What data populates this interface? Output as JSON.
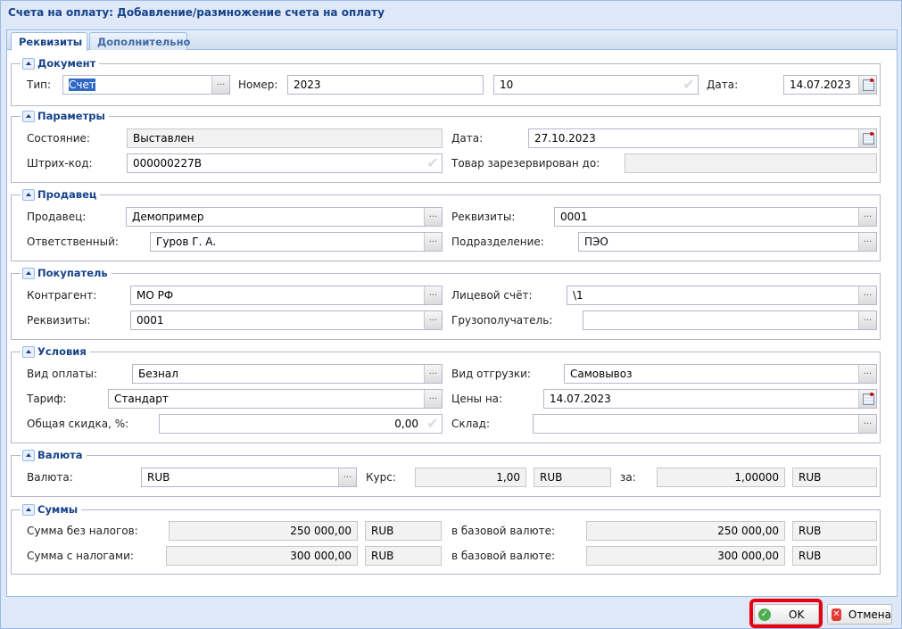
{
  "window": {
    "title": "Счета на оплату: Добавление/размножение счета на оплату"
  },
  "tabs": [
    {
      "label": "Реквизиты",
      "active": true
    },
    {
      "label": "Дополнительно",
      "active": false
    }
  ],
  "document": {
    "legend": "Документ",
    "type_label": "Тип:",
    "type_value": "Счет",
    "number_label": "Номер:",
    "number_value": "2023",
    "number_suffix": "10",
    "date_label": "Дата:",
    "date_value": "14.07.2023"
  },
  "params": {
    "legend": "Параметры",
    "state_label": "Состояние:",
    "state_value": "Выставлен",
    "date_label": "Дата:",
    "date_value": "27.10.2023",
    "barcode_label": "Штрих-код:",
    "barcode_value": "000000227B",
    "reserved_label": "Товар зарезервирован до:",
    "reserved_value": ""
  },
  "seller": {
    "legend": "Продавец",
    "seller_label": "Продавец:",
    "seller_value": "Демопример",
    "requisites_label": "Реквизиты:",
    "requisites_value": "0001",
    "responsible_label": "Ответственный:",
    "responsible_value": "Гуров Г. А.",
    "division_label": "Подразделение:",
    "division_value": "ПЭО"
  },
  "buyer": {
    "legend": "Покупатель",
    "contractor_label": "Контрагент:",
    "contractor_value": "МО РФ",
    "account_label": "Лицевой счёт:",
    "account_value": "\\1",
    "requisites_label": "Реквизиты:",
    "requisites_value": "0001",
    "consignee_label": "Грузополучатель:",
    "consignee_value": ""
  },
  "terms": {
    "legend": "Условия",
    "payment_label": "Вид оплаты:",
    "payment_value": "Безнал",
    "shipment_label": "Вид отгрузки:",
    "shipment_value": "Самовывоз",
    "tariff_label": "Тариф:",
    "tariff_value": "Стандарт",
    "prices_label": "Цены на:",
    "prices_value": "14.07.2023",
    "discount_label": "Общая скидка, %:",
    "discount_value": "0,00",
    "warehouse_label": "Склад:",
    "warehouse_value": ""
  },
  "currency": {
    "legend": "Валюта",
    "currency_label": "Валюта:",
    "currency_value": "RUB",
    "rate_label": "Курс:",
    "rate_value": "1,00",
    "rate_currency": "RUB",
    "per_label": "за:",
    "per_value": "1,00000",
    "per_currency": "RUB"
  },
  "sums": {
    "legend": "Суммы",
    "net_label": "Сумма без налогов:",
    "net_value": "250 000,00",
    "net_currency": "RUB",
    "net_base_label": "в базовой валюте:",
    "net_base_value": "250 000,00",
    "net_base_currency": "RUB",
    "gross_label": "Сумма с налогами:",
    "gross_value": "300 000,00",
    "gross_currency": "RUB",
    "gross_base_label": "в базовой валюте:",
    "gross_base_value": "300 000,00",
    "gross_base_currency": "RUB"
  },
  "buttons": {
    "ok": "OK",
    "cancel": "Отмена"
  },
  "colors": {
    "highlight": "#e8000f",
    "accent": "#15428b"
  }
}
